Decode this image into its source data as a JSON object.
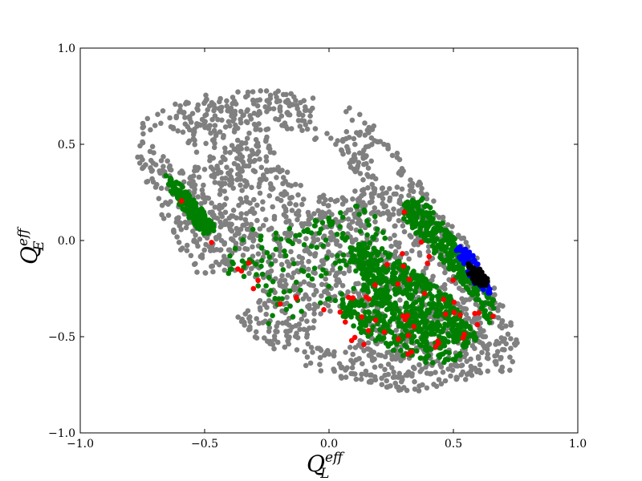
{
  "chart_data": {
    "type": "scatter",
    "title": "",
    "xlabel": {
      "base": "Q",
      "sub": "L",
      "sup": "eff"
    },
    "ylabel": {
      "base": "Q",
      "sub": "E",
      "sup": "eff"
    },
    "xlim": [
      -1.0,
      1.0
    ],
    "ylim": [
      -1.0,
      1.0
    ],
    "xticks": [
      -1.0,
      -0.5,
      0.0,
      0.5,
      1.0
    ],
    "yticks": [
      -1.0,
      -0.5,
      0.0,
      0.5,
      1.0
    ],
    "xtick_labels": [
      "−1.0",
      "−0.5",
      "0.0",
      "0.5",
      "1.0"
    ],
    "ytick_labels": [
      "−1.0",
      "−0.5",
      "0.0",
      "0.5",
      "1.0"
    ],
    "grid": false,
    "legend": "none",
    "series": [
      {
        "color": "#808080",
        "regions": [
          {
            "polygon": [
              [
                -0.78,
                0.6
              ],
              [
                -0.7,
                0.66
              ],
              [
                -0.62,
                0.72
              ],
              [
                -0.5,
                0.76
              ],
              [
                -0.35,
                0.78
              ],
              [
                -0.2,
                0.78
              ],
              [
                -0.05,
                0.74
              ],
              [
                0.05,
                0.72
              ],
              [
                0.15,
                0.64
              ],
              [
                0.25,
                0.5
              ],
              [
                0.35,
                0.34
              ],
              [
                0.45,
                0.16
              ],
              [
                0.55,
                0.0
              ],
              [
                0.65,
                -0.2
              ],
              [
                0.74,
                -0.45
              ],
              [
                0.78,
                -0.57
              ],
              [
                0.75,
                -0.68
              ],
              [
                0.62,
                -0.7
              ],
              [
                0.5,
                -0.74
              ],
              [
                0.35,
                -0.79
              ],
              [
                0.28,
                -0.78
              ],
              [
                0.15,
                -0.75
              ],
              [
                0.0,
                -0.7
              ],
              [
                -0.15,
                -0.62
              ],
              [
                -0.3,
                -0.5
              ],
              [
                -0.45,
                -0.3
              ],
              [
                -0.6,
                -0.05
              ],
              [
                -0.72,
                0.25
              ],
              [
                -0.78,
                0.45
              ]
            ]
          }
        ],
        "holes": [
          {
            "polygon": [
              [
                -0.74,
                0.55
              ],
              [
                -0.7,
                0.5
              ],
              [
                -0.64,
                0.4
              ],
              [
                -0.56,
                0.35
              ],
              [
                -0.52,
                0.42
              ],
              [
                -0.6,
                0.55
              ],
              [
                -0.66,
                0.6
              ]
            ]
          },
          {
            "polygon": [
              [
                -0.22,
                0.6
              ],
              [
                -0.1,
                0.55
              ],
              [
                0.05,
                0.45
              ],
              [
                0.12,
                0.3
              ],
              [
                0.05,
                0.22
              ],
              [
                -0.08,
                0.25
              ],
              [
                -0.18,
                0.38
              ],
              [
                -0.24,
                0.5
              ]
            ]
          },
          {
            "polygon": [
              [
                -0.05,
                0.75
              ],
              [
                0.05,
                0.72
              ],
              [
                0.08,
                0.62
              ],
              [
                0.0,
                0.55
              ],
              [
                -0.08,
                0.62
              ]
            ]
          },
          {
            "polygon": [
              [
                -0.55,
                -0.2
              ],
              [
                -0.4,
                -0.15
              ],
              [
                -0.25,
                -0.22
              ],
              [
                -0.3,
                -0.35
              ],
              [
                -0.45,
                -0.4
              ],
              [
                -0.55,
                -0.32
              ]
            ]
          },
          {
            "polygon": [
              [
                -0.05,
                -0.4
              ],
              [
                0.1,
                -0.35
              ],
              [
                0.15,
                -0.48
              ],
              [
                0.05,
                -0.58
              ],
              [
                -0.08,
                -0.55
              ]
            ]
          },
          {
            "polygon": [
              [
                0.2,
                0.48
              ],
              [
                0.3,
                0.4
              ],
              [
                0.25,
                0.3
              ],
              [
                0.15,
                0.35
              ]
            ]
          }
        ],
        "count": 2000
      },
      {
        "color": "#008000",
        "regions": [
          {
            "polygon": [
              [
                -0.66,
                0.34
              ],
              [
                -0.6,
                0.3
              ],
              [
                -0.52,
                0.18
              ],
              [
                -0.45,
                0.06
              ],
              [
                -0.5,
                0.02
              ],
              [
                -0.58,
                0.14
              ],
              [
                -0.64,
                0.26
              ]
            ],
            "weight": 1.2
          },
          {
            "polygon": [
              [
                0.08,
                -0.02
              ],
              [
                0.2,
                -0.03
              ],
              [
                0.3,
                -0.12
              ],
              [
                0.4,
                -0.2
              ],
              [
                0.5,
                -0.3
              ],
              [
                0.55,
                -0.4
              ],
              [
                0.6,
                -0.5
              ],
              [
                0.56,
                -0.56
              ],
              [
                0.45,
                -0.52
              ],
              [
                0.35,
                -0.45
              ],
              [
                0.25,
                -0.38
              ],
              [
                0.15,
                -0.3
              ],
              [
                0.1,
                -0.15
              ]
            ],
            "weight": 3.0
          },
          {
            "polygon": [
              [
                0.3,
                0.2
              ],
              [
                0.38,
                0.22
              ],
              [
                0.48,
                0.05
              ],
              [
                0.58,
                -0.1
              ],
              [
                0.68,
                -0.35
              ],
              [
                0.65,
                -0.45
              ],
              [
                0.58,
                -0.3
              ],
              [
                0.48,
                -0.15
              ],
              [
                0.38,
                0.0
              ],
              [
                0.3,
                0.1
              ]
            ],
            "weight": 2.0
          },
          {
            "polygon": [
              [
                -0.35,
                0.05
              ],
              [
                -0.1,
                0.1
              ],
              [
                0.15,
                0.2
              ],
              [
                0.25,
                0.05
              ],
              [
                0.1,
                -0.3
              ],
              [
                -0.1,
                -0.4
              ],
              [
                -0.25,
                -0.45
              ],
              [
                -0.4,
                -0.2
              ],
              [
                -0.42,
                -0.05
              ]
            ],
            "weight": 0.9
          },
          {
            "polygon": [
              [
                0.05,
                -0.3
              ],
              [
                0.25,
                -0.32
              ],
              [
                0.4,
                -0.5
              ],
              [
                0.55,
                -0.6
              ],
              [
                0.45,
                -0.66
              ],
              [
                0.3,
                -0.6
              ],
              [
                0.15,
                -0.5
              ],
              [
                0.05,
                -0.4
              ]
            ],
            "weight": 1.3
          }
        ],
        "count": 1400
      },
      {
        "color": "#ff0000",
        "regions": [
          {
            "polygon": [
              [
                -0.65,
                0.3
              ],
              [
                -0.55,
                0.25
              ],
              [
                -0.4,
                0.0
              ],
              [
                -0.3,
                -0.05
              ],
              [
                -0.1,
                -0.3
              ],
              [
                0.05,
                -0.5
              ],
              [
                0.15,
                -0.55
              ],
              [
                0.3,
                -0.6
              ],
              [
                0.5,
                -0.65
              ],
              [
                0.65,
                -0.6
              ],
              [
                0.7,
                -0.4
              ],
              [
                0.55,
                -0.2
              ],
              [
                0.35,
                0.28
              ],
              [
                0.3,
                0.3
              ],
              [
                0.2,
                -0.2
              ],
              [
                0.0,
                -0.35
              ],
              [
                -0.2,
                -0.4
              ],
              [
                -0.45,
                -0.05
              ],
              [
                -0.6,
                0.2
              ]
            ],
            "weight": 1
          }
        ],
        "count": 60
      },
      {
        "color": "#0000ff",
        "regions": [
          {
            "polygon": [
              [
                0.52,
                -0.02
              ],
              [
                0.57,
                -0.06
              ],
              [
                0.62,
                -0.16
              ],
              [
                0.66,
                -0.28
              ],
              [
                0.63,
                -0.3
              ],
              [
                0.58,
                -0.22
              ],
              [
                0.54,
                -0.12
              ],
              [
                0.51,
                -0.06
              ]
            ],
            "weight": 1
          }
        ],
        "count": 80
      },
      {
        "color": "#000000",
        "regions": [
          {
            "polygon": [
              [
                0.56,
                -0.12
              ],
              [
                0.6,
                -0.14
              ],
              [
                0.64,
                -0.2
              ],
              [
                0.63,
                -0.24
              ],
              [
                0.59,
                -0.23
              ],
              [
                0.56,
                -0.18
              ]
            ],
            "weight": 1
          }
        ],
        "count": 60
      }
    ]
  }
}
